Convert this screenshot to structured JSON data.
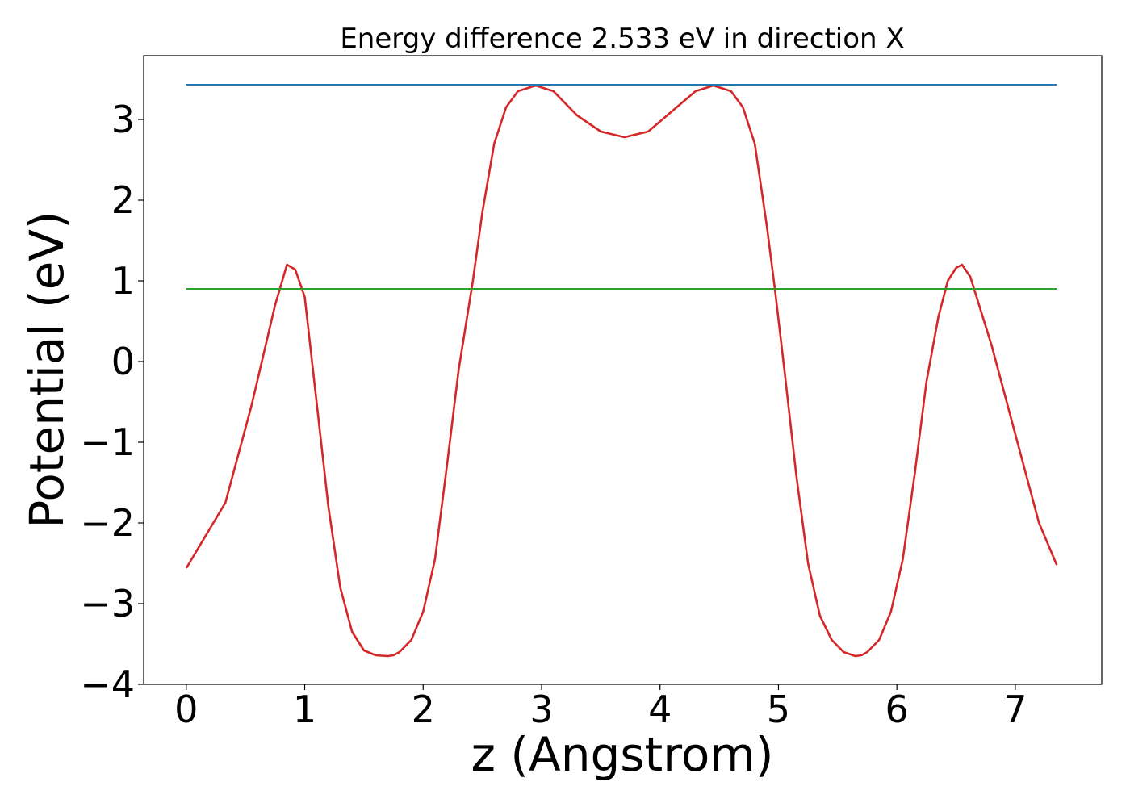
{
  "chart_data": {
    "type": "line",
    "title": "Energy difference 2.533 eV in direction X",
    "xlabel": "z (Angstrom)",
    "ylabel": "Potential (eV)",
    "xlim": [
      -0.36,
      7.73
    ],
    "ylim": [
      -4.0,
      3.79
    ],
    "x_ticks": [
      0,
      1,
      2,
      3,
      4,
      5,
      6,
      7
    ],
    "x_tick_labels": [
      "0",
      "1",
      "2",
      "3",
      "4",
      "5",
      "6",
      "7"
    ],
    "y_ticks": [
      -4,
      -3,
      -2,
      -1,
      0,
      1,
      2,
      3
    ],
    "y_tick_labels": [
      "−4",
      "−3",
      "−2",
      "−1",
      "0",
      "1",
      "2",
      "3"
    ],
    "grid": false,
    "legend": "none",
    "series": [
      {
        "color": "#d62728",
        "x": [
          0.0,
          0.33,
          0.55,
          0.75,
          0.85,
          0.92,
          1.0,
          1.1,
          1.2,
          1.3,
          1.4,
          1.5,
          1.6,
          1.7,
          1.75,
          1.8,
          1.9,
          2.0,
          2.1,
          2.2,
          2.3,
          2.42,
          2.5,
          2.6,
          2.7,
          2.8,
          2.95,
          3.1,
          3.3,
          3.5,
          3.7,
          3.9,
          4.1,
          4.3,
          4.45,
          4.6,
          4.7,
          4.8,
          4.9,
          4.97,
          5.05,
          5.15,
          5.25,
          5.35,
          5.45,
          5.55,
          5.65,
          5.7,
          5.75,
          5.85,
          5.95,
          6.05,
          6.15,
          6.25,
          6.35,
          6.43,
          6.5,
          6.55,
          6.62,
          6.8,
          7.0,
          7.2,
          7.35
        ],
        "y": [
          -2.56,
          -1.75,
          -0.55,
          0.7,
          1.2,
          1.14,
          0.8,
          -0.5,
          -1.8,
          -2.8,
          -3.35,
          -3.58,
          -3.64,
          -3.65,
          -3.64,
          -3.6,
          -3.45,
          -3.1,
          -2.45,
          -1.3,
          -0.1,
          1.0,
          1.85,
          2.7,
          3.15,
          3.35,
          3.42,
          3.35,
          3.05,
          2.85,
          2.78,
          2.85,
          3.1,
          3.35,
          3.42,
          3.35,
          3.15,
          2.7,
          1.7,
          0.9,
          -0.1,
          -1.4,
          -2.5,
          -3.15,
          -3.45,
          -3.6,
          -3.65,
          -3.64,
          -3.6,
          -3.45,
          -3.1,
          -2.45,
          -1.4,
          -0.25,
          0.55,
          1.0,
          1.16,
          1.2,
          1.05,
          0.2,
          -0.9,
          -2.0,
          -2.52
        ]
      },
      {
        "color": "#1f77b4",
        "x": [
          0.0,
          7.35
        ],
        "y": [
          3.43,
          3.43
        ]
      },
      {
        "color": "#2ca02c",
        "x": [
          0.0,
          7.35
        ],
        "y": [
          0.9,
          0.9
        ]
      }
    ]
  }
}
